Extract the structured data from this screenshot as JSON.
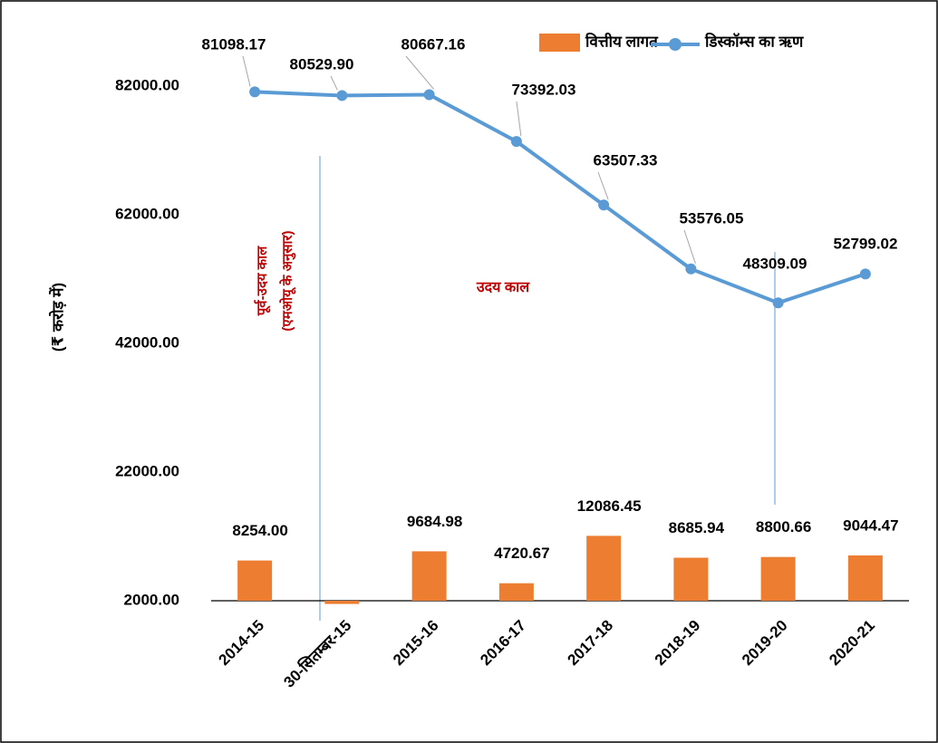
{
  "chart_data": {
    "type": "bar-line",
    "y_label": "(₹ करोड़ में)",
    "categories": [
      "2014-15",
      "30-सितम्बर-15",
      "2015-16",
      "2016-17",
      "2017-18",
      "2018-19",
      "2019-20",
      "2020-21"
    ],
    "series": [
      {
        "name": "वित्तीय लागत",
        "type": "bar",
        "color": "#ed7d31",
        "values": [
          8254.0,
          1500,
          9684.98,
          4720.67,
          12086.45,
          8685.94,
          8800.66,
          9044.47
        ],
        "value_labels": [
          "8254.00",
          null,
          "9684.98",
          "4720.67",
          "12086.45",
          "8685.94",
          "8800.66",
          "9044.47"
        ]
      },
      {
        "name": "डिस्कॉम्स का ऋण",
        "type": "line",
        "color": "#5b9bd5",
        "values": [
          81098.17,
          80529.9,
          80667.16,
          73392.03,
          63507.33,
          53576.05,
          48309.09,
          52799.02
        ],
        "value_labels": [
          "81098.17",
          "80529.90",
          "80667.16",
          "73392.03",
          "63507.33",
          "53576.05",
          "48309.09",
          "52799.02"
        ]
      }
    ],
    "ylim": [
      2000,
      88000
    ],
    "yticks": [
      {
        "value": 2000,
        "label": "2000.00"
      },
      {
        "value": 22000,
        "label": "22000.00"
      },
      {
        "value": 42000,
        "label": "42000.00"
      },
      {
        "value": 62000,
        "label": "62000.00"
      },
      {
        "value": 82000,
        "label": "82000.00"
      }
    ],
    "grid": false,
    "legend": "top",
    "annotations": [
      "पूर्व-उदय काल",
      "(एमओयू के अनुसार)",
      "उदय काल"
    ]
  }
}
